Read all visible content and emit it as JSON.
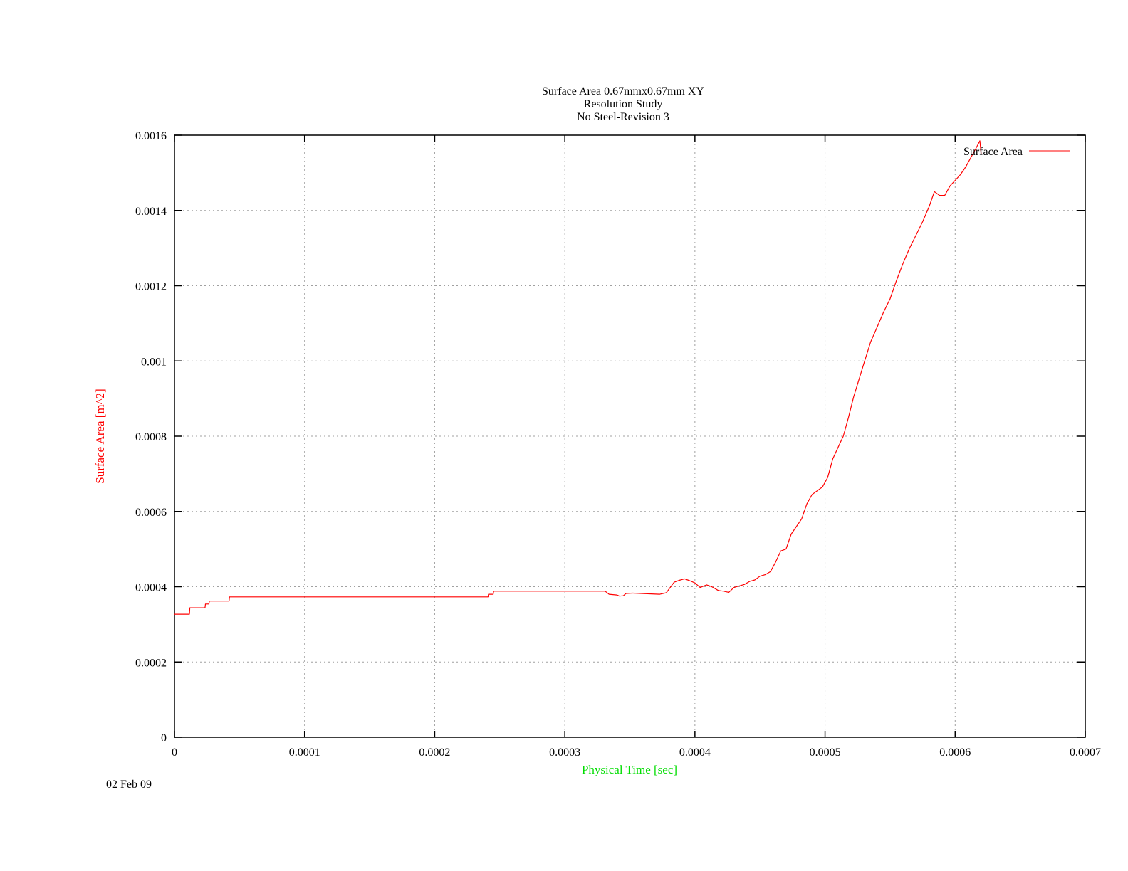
{
  "chart_data": {
    "type": "line",
    "title_lines": [
      "Surface Area 0.67mmx0.67mm XY",
      "Resolution Study",
      "No Steel-Revision 3"
    ],
    "xlabel": "Physical Time [sec]",
    "ylabel": "Surface Area [m^2]",
    "xlim": [
      0,
      0.0007
    ],
    "ylim": [
      0,
      0.0016
    ],
    "x_ticks": [
      0,
      0.0001,
      0.0002,
      0.0003,
      0.0004,
      0.0005,
      0.0006,
      0.0007
    ],
    "x_tick_labels": [
      "0",
      "0.0001",
      "0.0002",
      "0.0003",
      "0.0004",
      "0.0005",
      "0.0006",
      "0.0007"
    ],
    "y_ticks": [
      0,
      0.0002,
      0.0004,
      0.0006,
      0.0008,
      0.001,
      0.0012,
      0.0014,
      0.0016
    ],
    "y_tick_labels": [
      "0",
      "0.0002",
      "0.0004",
      "0.0006",
      "0.0008",
      "0.001",
      "0.0012",
      "0.0014",
      "0.0016"
    ],
    "grid": true,
    "legend_position": "top-right",
    "date_stamp": "02 Feb 09",
    "colors": {
      "series": "#ff0000",
      "ylabel": "#ff0000",
      "xlabel": "#00dd00",
      "grid": "#a0a0a0",
      "axis": "#000000"
    },
    "series": [
      {
        "name": "Surface Area",
        "points": [
          [
            0,
            0.000327
          ],
          [
            1.15e-05,
            0.000327
          ],
          [
            1.18e-05,
            0.000344
          ],
          [
            2.35e-05,
            0.000344
          ],
          [
            2.38e-05,
            0.000354
          ],
          [
            2.65e-05,
            0.000354
          ],
          [
            2.68e-05,
            0.000362
          ],
          [
            4.2e-05,
            0.000362
          ],
          [
            4.23e-05,
            0.000373
          ],
          [
            0.000241,
            0.000373
          ],
          [
            0.0002413,
            0.00038
          ],
          [
            0.000245,
            0.00038
          ],
          [
            0.0002453,
            0.000388
          ],
          [
            0.000331,
            0.000388
          ],
          [
            0.000334,
            0.00038
          ],
          [
            0.00034,
            0.000378
          ],
          [
            0.000342,
            0.000375
          ],
          [
            0.000345,
            0.000376
          ],
          [
            0.000347,
            0.000382
          ],
          [
            0.000352,
            0.000383
          ],
          [
            0.000365,
            0.000381
          ],
          [
            0.000373,
            0.00038
          ],
          [
            0.000378,
            0.000384
          ],
          [
            0.000381,
            0.000398
          ],
          [
            0.000384,
            0.000412
          ],
          [
            0.000388,
            0.000417
          ],
          [
            0.000392,
            0.000421
          ],
          [
            0.000396,
            0.000416
          ],
          [
            0.0004,
            0.00041
          ],
          [
            0.000404,
            0.000398
          ],
          [
            0.000409,
            0.000405
          ],
          [
            0.000413,
            0.0004
          ],
          [
            0.000418,
            0.00039
          ],
          [
            0.000422,
            0.000388
          ],
          [
            0.000426,
            0.000385
          ],
          [
            0.00043,
            0.000398
          ],
          [
            0.000434,
            0.000402
          ],
          [
            0.000438,
            0.000406
          ],
          [
            0.000442,
            0.000414
          ],
          [
            0.000446,
            0.000418
          ],
          [
            0.00045,
            0.000428
          ],
          [
            0.000454,
            0.000432
          ],
          [
            0.000458,
            0.00044
          ],
          [
            0.000462,
            0.000465
          ],
          [
            0.000466,
            0.000495
          ],
          [
            0.00047,
            0.0005
          ],
          [
            0.000474,
            0.00054
          ],
          [
            0.000478,
            0.00056
          ],
          [
            0.000482,
            0.00058
          ],
          [
            0.000486,
            0.00062
          ],
          [
            0.00049,
            0.000645
          ],
          [
            0.000494,
            0.000655
          ],
          [
            0.000498,
            0.000665
          ],
          [
            0.000502,
            0.00069
          ],
          [
            0.000506,
            0.00074
          ],
          [
            0.00051,
            0.00077
          ],
          [
            0.000514,
            0.0008
          ],
          [
            0.000518,
            0.00085
          ],
          [
            0.000522,
            0.000905
          ],
          [
            0.000526,
            0.00095
          ],
          [
            0.00053,
            0.000995
          ],
          [
            0.000535,
            0.00105
          ],
          [
            0.00054,
            0.00109
          ],
          [
            0.000545,
            0.00113
          ],
          [
            0.00055,
            0.001165
          ],
          [
            0.000555,
            0.001215
          ],
          [
            0.00056,
            0.00126
          ],
          [
            0.000565,
            0.0013
          ],
          [
            0.00057,
            0.001335
          ],
          [
            0.000575,
            0.00137
          ],
          [
            0.00058,
            0.00141
          ],
          [
            0.000584,
            0.00145
          ],
          [
            0.000588,
            0.00144
          ],
          [
            0.000592,
            0.00144
          ],
          [
            0.000596,
            0.001465
          ],
          [
            0.0006,
            0.00148
          ],
          [
            0.000604,
            0.001495
          ],
          [
            0.000608,
            0.001515
          ],
          [
            0.000612,
            0.00154
          ],
          [
            0.000616,
            0.001565
          ],
          [
            0.000619,
            0.001585
          ],
          [
            0.00062,
            0.00155
          ]
        ]
      }
    ]
  }
}
